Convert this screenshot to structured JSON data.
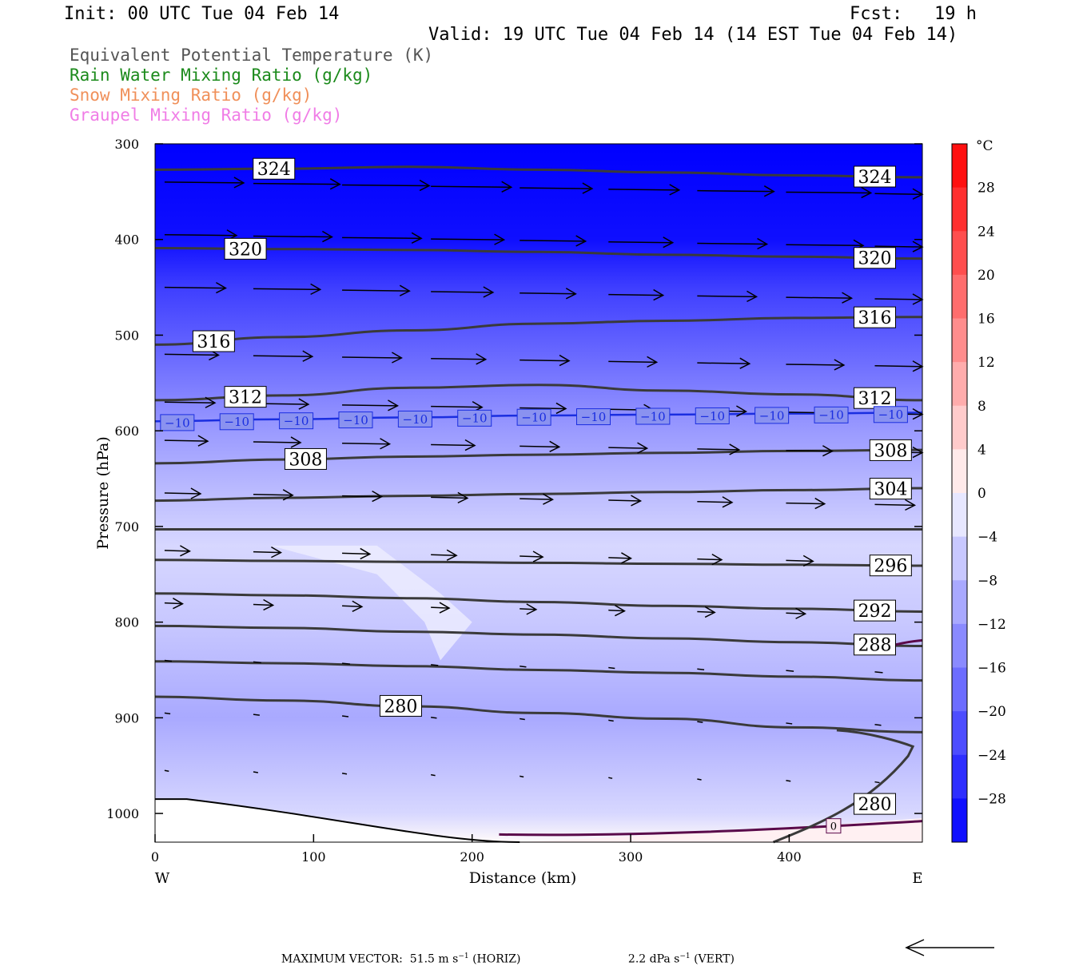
{
  "header": {
    "init": "Init: 00 UTC Tue 04 Feb 14",
    "fcst": "Fcst:   19 h",
    "valid": "Valid: 19 UTC Tue 04 Feb 14 (14 EST Tue 04 Feb 14)"
  },
  "fields": [
    {
      "label": "Equivalent Potential Temperature (K)",
      "color": "#555555"
    },
    {
      "label": "Rain Water Mixing Ratio (g/kg)",
      "color": "#1b8a1b"
    },
    {
      "label": "Snow Mixing Ratio (g/kg)",
      "color": "#f0905a"
    },
    {
      "label": "Graupel Mixing Ratio (g/kg)",
      "color": "#f07de6"
    }
  ],
  "chart_data": {
    "type": "contour",
    "xlabel": "Distance (km)",
    "ylabel": "Pressure (hPa)",
    "xlim": [
      0,
      484
    ],
    "ylim": [
      1030,
      300
    ],
    "x_ticks": [
      "0",
      "100",
      "200",
      "300",
      "400"
    ],
    "y_ticks": [
      "300",
      "400",
      "500",
      "600",
      "700",
      "800",
      "900",
      "1000"
    ],
    "x_end_labels": {
      "left": "W",
      "right": "E"
    },
    "theta_e_contours": [
      {
        "value": 324,
        "labels": [
          "324",
          "324"
        ],
        "p": [
          327,
          326,
          324,
          327,
          330,
          333,
          335
        ]
      },
      {
        "value": 320,
        "labels": [
          "320",
          "320"
        ],
        "p": [
          409,
          410,
          411,
          413,
          416,
          418,
          420
        ]
      },
      {
        "value": 316,
        "labels": [
          "316",
          "316"
        ],
        "p": [
          510,
          502,
          495,
          488,
          485,
          482,
          481
        ]
      },
      {
        "value": 312,
        "labels": [
          "312",
          "312"
        ],
        "p": [
          568,
          563,
          555,
          552,
          558,
          562,
          568
        ]
      },
      {
        "value": 308,
        "labels": [
          "308",
          "308"
        ],
        "p": [
          634,
          630,
          627,
          625,
          623,
          621,
          620
        ]
      },
      {
        "value": 304,
        "labels": [
          "304"
        ],
        "p": [
          673,
          670,
          668,
          666,
          664,
          662,
          660
        ]
      },
      {
        "value": 300,
        "labels": [],
        "p": [
          703,
          703,
          703,
          703,
          703,
          703,
          703
        ]
      },
      {
        "value": 296,
        "labels": [
          "296"
        ],
        "p": [
          735,
          736,
          737,
          738,
          739,
          740,
          741
        ]
      },
      {
        "value": 292,
        "labels": [
          "292"
        ],
        "p": [
          770,
          772,
          775,
          779,
          783,
          786,
          789
        ]
      },
      {
        "value": 288,
        "labels": [
          "288"
        ],
        "p": [
          804,
          806,
          810,
          813,
          817,
          821,
          825
        ]
      },
      {
        "value": 284,
        "labels": [],
        "p": [
          841,
          843,
          846,
          850,
          853,
          857,
          861
        ]
      },
      {
        "value": 280,
        "labels": [
          "280"
        ],
        "p": [
          878,
          882,
          888,
          895,
          901,
          910,
          915
        ]
      }
    ],
    "isotherm_labels": [
      "−10",
      "−10",
      "−10",
      "−10",
      "−10",
      "−10",
      "−10",
      "−10",
      "−10",
      "−10",
      "−10",
      "−10",
      "−10"
    ],
    "isotherm_value": -10,
    "isotherm_p": [
      590,
      588,
      586,
      584,
      583,
      582,
      581
    ],
    "zero_isotherm_label": "0",
    "surface_line_label": "280",
    "colorbar": {
      "unit": "°C",
      "tick_labels": [
        "28",
        "24",
        "20",
        "16",
        "12",
        "8",
        "4",
        "0",
        "−4",
        "−8",
        "−12",
        "−16",
        "−20",
        "−24",
        "−28"
      ],
      "min": -32,
      "max": 32,
      "step": 4
    },
    "temperature_bands_at_x0": [
      {
        "p": 300,
        "t": -32
      },
      {
        "p": 400,
        "t": -30
      },
      {
        "p": 450,
        "t": -24
      },
      {
        "p": 500,
        "t": -20
      },
      {
        "p": 550,
        "t": -16
      },
      {
        "p": 600,
        "t": -12
      },
      {
        "p": 660,
        "t": -8
      },
      {
        "p": 720,
        "t": -4
      },
      {
        "p": 800,
        "t": -6
      },
      {
        "p": 900,
        "t": -10
      },
      {
        "p": 1000,
        "t": -4
      },
      {
        "p": 1030,
        "t": 0
      }
    ]
  },
  "footer": {
    "max_vector": "MAXIMUM VECTOR:  51.5 m s",
    "horiz_unit": "(HORIZ)",
    "vert_value": "2.2 dPa s",
    "vert_unit": "(VERT)",
    "superscript": "−1"
  }
}
